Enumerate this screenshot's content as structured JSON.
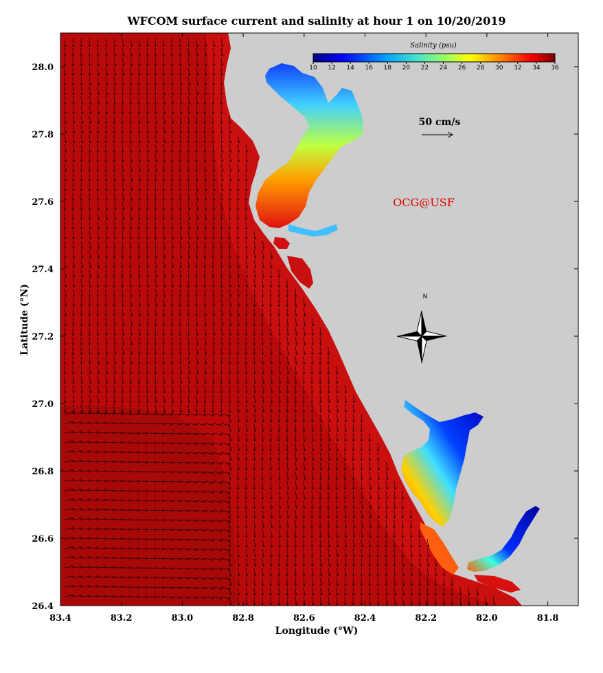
{
  "title": "WFCOM surface current and salinity at hour 1 on 10/20/2019",
  "x_axis": {
    "label": "Longitude (°W)",
    "range": [
      83.4,
      81.7
    ],
    "ticks": [
      "83.4",
      "83.2",
      "83.0",
      "82.8",
      "82.6",
      "82.4",
      "82.2",
      "82.0",
      "81.8"
    ]
  },
  "y_axis": {
    "label": "Latitude (°N)",
    "range": [
      26.4,
      28.1
    ],
    "ticks": [
      "26.4",
      "26.6",
      "26.8",
      "27.0",
      "27.2",
      "27.4",
      "27.6",
      "27.8",
      "28.0"
    ]
  },
  "colorbar": {
    "title": "Salinity (psu)",
    "ticks": [
      "10",
      "12",
      "14",
      "16",
      "18",
      "20",
      "22",
      "24",
      "26",
      "28",
      "30",
      "32",
      "34",
      "36"
    ],
    "range": [
      10,
      36
    ]
  },
  "scale_arrow": {
    "label": "50 cm/s"
  },
  "credit": "OCG@USF",
  "compass": {
    "label": "N"
  },
  "colors": {
    "ocean": "#b80a0a",
    "land": "#cdcdcd",
    "credit": "#e00000"
  }
}
